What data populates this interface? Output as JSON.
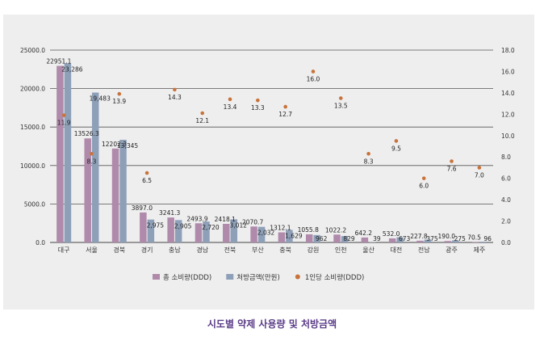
{
  "chart_data": {
    "type": "bar",
    "categories": [
      "대구",
      "서울",
      "경북",
      "경기",
      "충남",
      "경남",
      "전북",
      "부산",
      "충북",
      "강원",
      "인천",
      "울산",
      "대전",
      "전남",
      "광주",
      "제주"
    ],
    "series": [
      {
        "name": "총 소비량(DDD)",
        "axis": "left",
        "color": "#b08aaa",
        "values": [
          22951.1,
          13526.3,
          12202.3,
          3897.0,
          3241.3,
          2493.9,
          2418.1,
          2070.7,
          1312.1,
          1055.8,
          1022.2,
          642.2,
          532.0,
          227.8,
          190.0,
          70.5
        ],
        "labels": [
          "22951.1",
          "13526.3",
          "12202.3",
          "3897.0",
          "3241.3",
          "2493.9",
          "2418.1",
          "2070.7",
          "1312.1",
          "1055.8",
          "1022.2",
          "642.2",
          "532.0",
          "227.8",
          "190.0",
          "70.5"
        ]
      },
      {
        "name": "처방금액(만원)",
        "axis": "left",
        "color": "#8ea0b8",
        "values": [
          23286,
          19483,
          13345,
          2975,
          2905,
          2720,
          3012,
          2032,
          1629,
          962,
          829,
          39,
          673,
          375,
          275,
          96
        ],
        "labels": [
          "23,286",
          "19,483",
          "13,345",
          "2,975",
          "2,905",
          "2,720",
          "3,012",
          "2,032",
          "1,629",
          "962",
          "829",
          "39",
          "673",
          "375",
          "275",
          "96"
        ]
      },
      {
        "name": "1인당 소비량(DDD)",
        "axis": "right",
        "color": "#c8733a",
        "values": [
          11.9,
          8.3,
          13.9,
          6.5,
          14.3,
          12.1,
          13.4,
          13.3,
          12.7,
          16.0,
          13.5,
          8.3,
          9.5,
          6.0,
          7.6,
          7.0
        ],
        "labels": [
          "11.9",
          "8.3",
          "13.9",
          "6.5",
          "14.3",
          "12.1",
          "13.4",
          "13.3",
          "12.7",
          "16.0",
          "13.5",
          "8.3",
          "9.5",
          "6.0",
          "7.6",
          "7.0"
        ]
      }
    ],
    "ylim": [
      0,
      25000
    ],
    "y2lim": [
      0,
      18
    ],
    "yticks": [
      "0.0",
      "5000.0",
      "10000.0",
      "15000.0",
      "20000.0",
      "25000.0"
    ],
    "y2ticks": [
      "0.0",
      "2.0",
      "4.0",
      "6.0",
      "8.0",
      "10.0",
      "12.0",
      "14.0",
      "16.0",
      "18.0"
    ],
    "grid": true,
    "legend_position": "bottom",
    "title": "시도별 약제 사용량 및 처방금액"
  }
}
